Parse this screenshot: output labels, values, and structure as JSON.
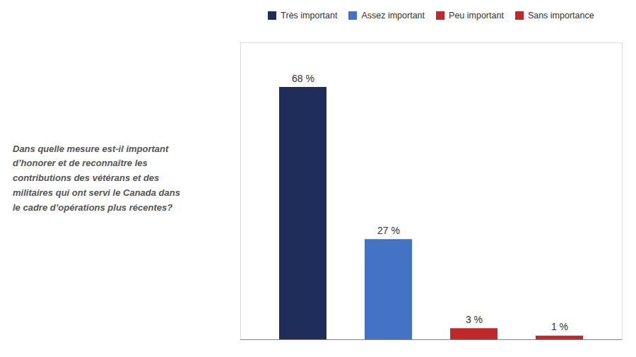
{
  "chart_data": {
    "type": "bar",
    "annotations": [
      "Dans quelle mesure est-il important",
      "d’honorer et de reconnaître les",
      "contributions des vétérans et des",
      "militaires qui ont servi le Canada dans",
      "le cadre d’opérations plus récentes?"
    ],
    "categories": [
      "Très important",
      "Assez important",
      "Peu important",
      "Sans importance"
    ],
    "values": [
      68,
      27,
      3,
      1
    ],
    "value_labels": [
      "68 %",
      "27 %",
      "3 %",
      "1 %"
    ],
    "colors": [
      "#1f2d5a",
      "#4472c4",
      "#c0292b",
      "#c0292b"
    ],
    "ylim": [
      0,
      80
    ],
    "data_labels": true,
    "tick_labels": false,
    "legend": "top"
  }
}
